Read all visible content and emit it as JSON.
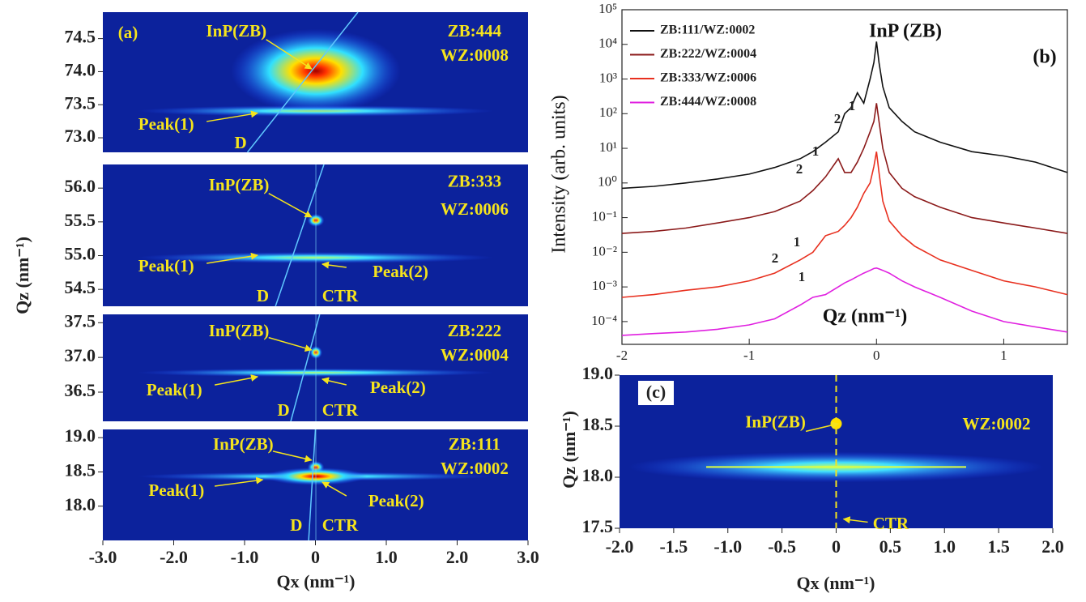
{
  "chart_data": [
    {
      "type": "heatmap",
      "label": "(a)",
      "xlabel": "Qx (nm⁻¹)",
      "ylabel": "Qz (nm⁻¹)",
      "xlim": [
        -3,
        3
      ],
      "xticks": [
        {
          "value": -3,
          "label": "-3.0"
        },
        {
          "value": -2,
          "label": "-2.0"
        },
        {
          "value": -1,
          "label": "-1.0"
        },
        0,
        {
          "value": 1,
          "label": "1.0"
        },
        {
          "value": 2,
          "label": "2.0"
        },
        {
          "value": 3,
          "label": "3.0"
        }
      ],
      "panels": [
        {
          "ylim": [
            72.78,
            74.9
          ],
          "yticks": [
            {
              "value": 73,
              "label": "73.0"
            },
            73.5,
            {
              "value": 74,
              "label": "74.0"
            },
            74.5
          ],
          "annotations": [
            "InP(ZB)",
            "ZB:444",
            "WZ:0008",
            "Peak(1)",
            "D"
          ]
        },
        {
          "ylim": [
            54.25,
            56.35
          ],
          "yticks": [
            54.5,
            {
              "value": 55,
              "label": "55.0"
            },
            55.5,
            {
              "value": 56,
              "label": "56.0"
            }
          ],
          "annotations": [
            "InP(ZB)",
            "ZB:333",
            "WZ:0006",
            "Peak(1)",
            "Peak(2)",
            "D",
            "CTR"
          ]
        },
        {
          "ylim": [
            36.08,
            37.62
          ],
          "yticks": [
            36.5,
            {
              "value": 37,
              "label": "37.0"
            },
            37.5
          ],
          "annotations": [
            "InP(ZB)",
            "ZB:222",
            "WZ:0004",
            "Peak(1)",
            "Peak(2)",
            "D",
            "CTR"
          ]
        },
        {
          "ylim": [
            17.5,
            19.12
          ],
          "yticks": [
            {
              "value": 18,
              "label": "18.0"
            },
            18.5,
            {
              "value": 19,
              "label": "19.0"
            }
          ],
          "annotations": [
            "InP(ZB)",
            "ZB:111",
            "WZ:0002",
            "Peak(1)",
            "Peak(2)",
            "D",
            "CTR"
          ]
        }
      ]
    },
    {
      "type": "line",
      "label": "(b)",
      "title": "InP (ZB)",
      "xlabel": "Qz (nm⁻¹)",
      "ylabel": "Intensity (arb. units)",
      "log_y": true,
      "xlim": [
        -2,
        1.5
      ],
      "xticks": [
        -2,
        -1,
        0,
        1
      ],
      "ylim": [
        2.2e-05,
        100000
      ],
      "yticks": [
        {
          "value": 0.0001,
          "label": "10⁻⁴"
        },
        {
          "value": 0.001,
          "label": "10⁻³"
        },
        {
          "value": 0.01,
          "label": "10⁻²"
        },
        {
          "value": 0.1,
          "label": "10⁻¹"
        },
        {
          "value": 1,
          "label": "10⁰"
        },
        {
          "value": 10,
          "label": "10¹"
        },
        {
          "value": 100,
          "label": "10²"
        },
        {
          "value": 1000,
          "label": "10³"
        },
        {
          "value": 10000,
          "label": "10⁴"
        },
        {
          "value": 100000,
          "label": "10⁵"
        }
      ],
      "legend": "upper left",
      "annotations": [
        "1",
        "2",
        "1",
        "2",
        "1",
        "2",
        "1"
      ],
      "x": [
        -2,
        -1.75,
        -1.5,
        -1.25,
        -1,
        -0.8,
        -0.6,
        -0.5,
        -0.4,
        -0.3,
        -0.25,
        -0.2,
        -0.15,
        -0.1,
        -0.05,
        -0.02,
        0,
        0.02,
        0.05,
        0.1,
        0.2,
        0.3,
        0.5,
        0.75,
        1,
        1.25,
        1.5
      ],
      "series": [
        {
          "name": "ZB:111/WZ:0002",
          "color": "#111111",
          "values": [
            0.7,
            0.8,
            1,
            1.3,
            1.8,
            2.8,
            5,
            8,
            15,
            30,
            100,
            150,
            400,
            200,
            1000,
            3000,
            12000,
            3000,
            600,
            150,
            60,
            30,
            15,
            8,
            6,
            4,
            2
          ]
        },
        {
          "name": "ZB:222/WZ:0004",
          "color": "#8b1a1a",
          "values": [
            0.035,
            0.04,
            0.05,
            0.07,
            0.1,
            0.15,
            0.3,
            0.6,
            1.5,
            5,
            2,
            2,
            4,
            10,
            30,
            60,
            200,
            60,
            10,
            2,
            0.7,
            0.4,
            0.2,
            0.1,
            0.07,
            0.05,
            0.035
          ]
        },
        {
          "name": "ZB:333/WZ:0006",
          "color": "#e8301f",
          "values": [
            0.0005,
            0.0006,
            0.0008,
            0.001,
            0.0015,
            0.0025,
            0.006,
            0.01,
            0.03,
            0.04,
            0.06,
            0.1,
            0.2,
            0.5,
            1,
            3,
            8,
            2,
            0.3,
            0.08,
            0.03,
            0.015,
            0.006,
            0.003,
            0.0015,
            0.001,
            0.0006
          ]
        },
        {
          "name": "ZB:444/WZ:0008",
          "color": "#e020e0",
          "values": [
            4e-05,
            4.5e-05,
            5e-05,
            6e-05,
            8e-05,
            0.00012,
            0.0003,
            0.0005,
            0.0006,
            0.001,
            0.0013,
            0.0016,
            0.002,
            0.0025,
            0.003,
            0.0034,
            0.0035,
            0.0033,
            0.003,
            0.0025,
            0.0015,
            0.001,
            0.0005,
            0.0002,
            0.0001,
            7e-05,
            5e-05
          ]
        }
      ]
    },
    {
      "type": "heatmap",
      "label": "(c)",
      "xlabel": "Qx (nm⁻¹)",
      "ylabel": "Qz (nm⁻¹)",
      "xlim": [
        -2,
        2
      ],
      "xticks": [
        {
          "value": -2,
          "label": "-2.0"
        },
        {
          "value": -1.5,
          "label": "-1.5"
        },
        {
          "value": -1,
          "label": "-1.0"
        },
        {
          "value": -0.5,
          "label": "-0.5"
        },
        0,
        0.5,
        {
          "value": 1,
          "label": "1.0"
        },
        1.5,
        {
          "value": 2,
          "label": "2.0"
        }
      ],
      "panels": [
        {
          "ylim": [
            17.5,
            19
          ],
          "yticks": [
            17.5,
            {
              "value": 18,
              "label": "18.0"
            },
            18.5,
            {
              "value": 19,
              "label": "19.0"
            }
          ],
          "annotations": [
            "InP(ZB)",
            "WZ:0002",
            "CTR"
          ]
        }
      ]
    }
  ]
}
